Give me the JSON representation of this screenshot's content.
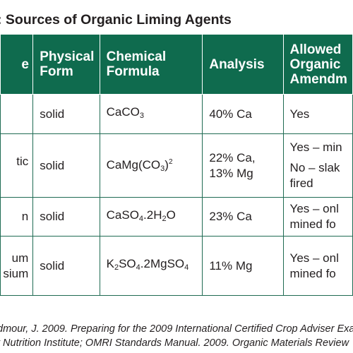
{
  "title": ": Sources of Organic Liming Agents",
  "headers": {
    "source": "e",
    "physical_form": [
      "Physical",
      "Form"
    ],
    "chemical_formula": [
      "Chemical",
      "Formula"
    ],
    "analysis": "Analysis",
    "allowed": [
      "Allowed",
      "Organic",
      "Amendm"
    ]
  },
  "rows": [
    {
      "source": "",
      "physical_form": "solid",
      "formula_html": "CaCO<span class=\"sub\">3</span>",
      "analysis": [
        "40% Ca"
      ],
      "allowed": [
        "Yes"
      ]
    },
    {
      "source": [
        "tic"
      ],
      "physical_form": "solid",
      "formula_html": "CaMg(CO<span class=\"sub\">3</span>)<span class=\"sup\">2</span>",
      "analysis": [
        "22% Ca,",
        "13% Mg"
      ],
      "allowed": [
        "Yes – min",
        "No – slak",
        "fired"
      ]
    },
    {
      "source": [
        "n"
      ],
      "physical_form": "solid",
      "formula_html": "CaSO<span class=\"sub\">4</span>.2H<span class=\"sub\">2</span>O",
      "analysis": [
        "23% Ca"
      ],
      "allowed": [
        "Yes – onl",
        "mined fo"
      ]
    },
    {
      "source": [
        "um",
        "sium"
      ],
      "physical_form": "solid",
      "formula_html": "K<span class=\"sub\">2</span>SO<span class=\"sub\">4</span>.2MgSO<span class=\"sub\">4</span>",
      "analysis": [
        "11% Mg"
      ],
      "allowed": [
        "Yes – onl",
        "mined fo"
      ]
    }
  ],
  "footnote": [
    "dmour, J. 2009. Preparing for the 2009 International Certified Crop Adviser Exa",
    "t Nutrition Institute; OMRI Standards Manual. 2009. Organic Materials Review"
  ],
  "colors": {
    "header_bg": "#0f6b4e",
    "border": "#1f6b53",
    "text": "#231f20"
  }
}
